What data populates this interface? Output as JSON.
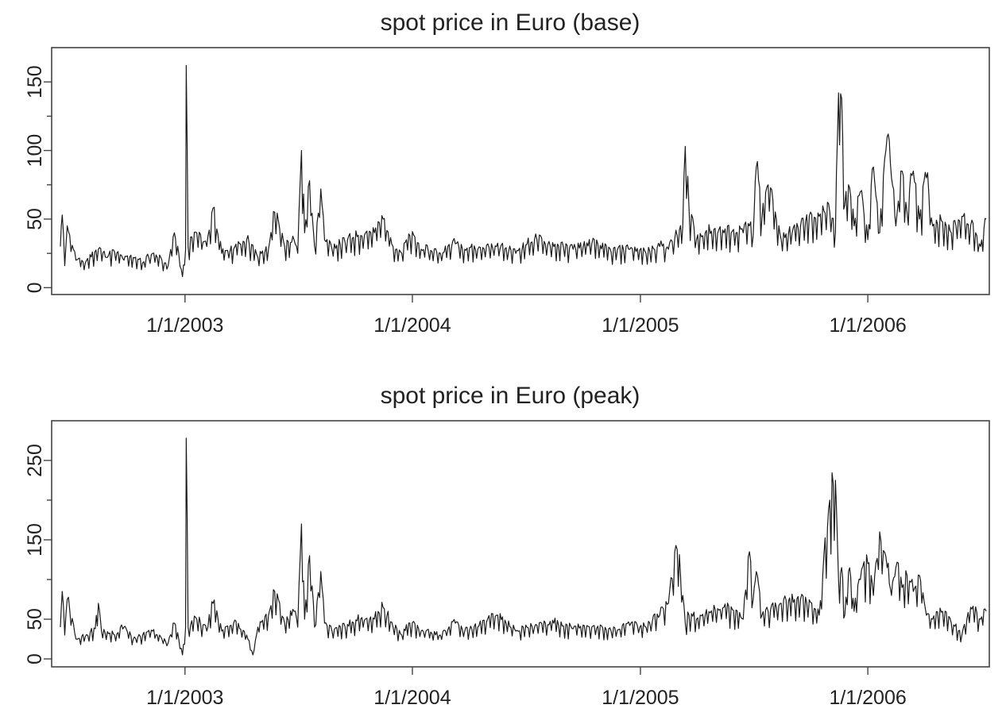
{
  "chart_data": [
    {
      "type": "line",
      "title": "spot price in Euro (base)",
      "xlabel": "",
      "ylabel": "",
      "xlim": [
        "2002-06-01",
        "2006-07-15"
      ],
      "ylim": [
        -5,
        175
      ],
      "x_ticks": [
        {
          "value": "2003-01-01",
          "label": "1/1/2003"
        },
        {
          "value": "2004-01-01",
          "label": "1/1/2004"
        },
        {
          "value": "2005-01-01",
          "label": "1/1/2005"
        },
        {
          "value": "2006-01-01",
          "label": "1/1/2006"
        }
      ],
      "y_ticks": [
        0,
        50,
        100,
        150
      ],
      "y_minor_ticks": [
        25,
        75,
        125
      ],
      "grid": false,
      "legend": "none",
      "series": [
        {
          "x": [
            "2002-06-15",
            "2002-06-18",
            "2002-06-22",
            "2002-06-26",
            "2002-07-10",
            "2002-07-25",
            "2002-08-15",
            "2002-08-28",
            "2002-09-10",
            "2002-09-25",
            "2002-10-10",
            "2002-10-25",
            "2002-11-10",
            "2002-11-25",
            "2002-12-05",
            "2002-12-15",
            "2002-12-22",
            "2002-12-28",
            "2003-01-02",
            "2003-01-03",
            "2003-01-06",
            "2003-01-20",
            "2003-02-05",
            "2003-02-15",
            "2003-03-01",
            "2003-03-20",
            "2003-04-10",
            "2003-04-28",
            "2003-05-15",
            "2003-05-25",
            "2003-06-10",
            "2003-06-25",
            "2003-07-01",
            "2003-07-07",
            "2003-07-12",
            "2003-07-20",
            "2003-07-28",
            "2003-08-07",
            "2003-08-13",
            "2003-08-25",
            "2003-09-15",
            "2003-10-10",
            "2003-11-01",
            "2003-11-15",
            "2003-12-01",
            "2003-12-15",
            "2003-12-28",
            "2004-01-15",
            "2004-02-15",
            "2004-03-10",
            "2004-03-25",
            "2004-04-15",
            "2004-05-15",
            "2004-06-15",
            "2004-07-15",
            "2004-08-15",
            "2004-09-15",
            "2004-10-15",
            "2004-11-15",
            "2004-12-15",
            "2005-01-10",
            "2005-02-01",
            "2005-02-15",
            "2005-03-01",
            "2005-03-10",
            "2005-03-14",
            "2005-03-20",
            "2005-04-01",
            "2005-04-15",
            "2005-05-15",
            "2005-06-15",
            "2005-06-25",
            "2005-07-01",
            "2005-07-06",
            "2005-07-15",
            "2005-07-25",
            "2005-08-15",
            "2005-09-15",
            "2005-10-15",
            "2005-11-01",
            "2005-11-10",
            "2005-11-15",
            "2005-11-20",
            "2005-11-25",
            "2005-12-01",
            "2005-12-10",
            "2005-12-20",
            "2006-01-01",
            "2006-01-10",
            "2006-01-20",
            "2006-02-01",
            "2006-02-08",
            "2006-02-15",
            "2006-02-25",
            "2006-03-05",
            "2006-03-15",
            "2006-03-25",
            "2006-04-05",
            "2006-04-15",
            "2006-05-01",
            "2006-05-15",
            "2006-06-01",
            "2006-06-15",
            "2006-07-01",
            "2006-07-10"
          ],
          "values": [
            30,
            53,
            16,
            45,
            20,
            18,
            28,
            22,
            26,
            20,
            22,
            18,
            25,
            20,
            16,
            40,
            25,
            8,
            28,
            162,
            30,
            40,
            30,
            58,
            25,
            28,
            35,
            22,
            28,
            55,
            30,
            35,
            25,
            100,
            40,
            78,
            30,
            72,
            35,
            28,
            33,
            38,
            40,
            50,
            30,
            25,
            38,
            28,
            25,
            32,
            28,
            28,
            30,
            25,
            35,
            30,
            28,
            32,
            26,
            28,
            25,
            30,
            28,
            38,
            45,
            103,
            58,
            35,
            40,
            40,
            40,
            45,
            38,
            88,
            50,
            75,
            35,
            45,
            52,
            55,
            40,
            142,
            138,
            60,
            75,
            45,
            70,
            35,
            88,
            40,
            110,
            80,
            45,
            85,
            55,
            85,
            50,
            80,
            45,
            48,
            40,
            52,
            45,
            30,
            50
          ]
        }
      ]
    },
    {
      "type": "line",
      "title": "spot price in Euro (peak)",
      "xlabel": "",
      "ylabel": "",
      "xlim": [
        "2002-06-01",
        "2006-07-15"
      ],
      "ylim": [
        -10,
        300
      ],
      "x_ticks": [
        {
          "value": "2003-01-01",
          "label": "1/1/2003"
        },
        {
          "value": "2004-01-01",
          "label": "1/1/2004"
        },
        {
          "value": "2005-01-01",
          "label": "1/1/2005"
        },
        {
          "value": "2006-01-01",
          "label": "1/1/2006"
        }
      ],
      "y_ticks": [
        0,
        50,
        150,
        250
      ],
      "y_minor_ticks": [
        100,
        200
      ],
      "grid": false,
      "legend": "none",
      "series": [
        {
          "x": [
            "2002-06-15",
            "2002-06-18",
            "2002-06-22",
            "2002-06-26",
            "2002-07-10",
            "2002-07-25",
            "2002-08-10",
            "2002-08-15",
            "2002-08-20",
            "2002-09-10",
            "2002-09-25",
            "2002-10-10",
            "2002-10-25",
            "2002-11-10",
            "2002-11-25",
            "2002-12-05",
            "2002-12-15",
            "2002-12-22",
            "2002-12-28",
            "2003-01-02",
            "2003-01-03",
            "2003-01-06",
            "2003-01-20",
            "2003-02-05",
            "2003-02-15",
            "2003-03-01",
            "2003-03-20",
            "2003-04-10",
            "2003-04-20",
            "2003-04-28",
            "2003-05-15",
            "2003-05-25",
            "2003-06-10",
            "2003-06-25",
            "2003-07-01",
            "2003-07-07",
            "2003-07-12",
            "2003-07-20",
            "2003-07-28",
            "2003-08-07",
            "2003-08-13",
            "2003-08-25",
            "2003-09-15",
            "2003-10-10",
            "2003-11-01",
            "2003-11-15",
            "2003-12-01",
            "2003-12-15",
            "2003-12-28",
            "2004-01-15",
            "2004-02-15",
            "2004-03-10",
            "2004-03-25",
            "2004-04-15",
            "2004-05-15",
            "2004-06-15",
            "2004-07-15",
            "2004-08-15",
            "2004-09-15",
            "2004-10-15",
            "2004-11-15",
            "2004-12-15",
            "2005-01-10",
            "2005-02-01",
            "2005-02-15",
            "2005-03-01",
            "2005-03-10",
            "2005-03-14",
            "2005-03-20",
            "2005-04-01",
            "2005-04-15",
            "2005-05-15",
            "2005-06-15",
            "2005-06-25",
            "2005-07-01",
            "2005-07-06",
            "2005-07-15",
            "2005-07-25",
            "2005-08-15",
            "2005-09-15",
            "2005-10-15",
            "2005-11-01",
            "2005-11-10",
            "2005-11-15",
            "2005-11-20",
            "2005-11-25",
            "2005-12-01",
            "2005-12-10",
            "2005-12-20",
            "2006-01-01",
            "2006-01-10",
            "2006-01-20",
            "2006-02-01",
            "2006-02-08",
            "2006-02-15",
            "2006-02-25",
            "2006-03-05",
            "2006-03-15",
            "2006-03-25",
            "2006-04-05",
            "2006-04-15",
            "2006-05-01",
            "2006-05-15",
            "2006-06-01",
            "2006-06-15",
            "2006-07-01",
            "2006-07-10"
          ],
          "values": [
            40,
            85,
            30,
            75,
            25,
            28,
            38,
            70,
            35,
            30,
            40,
            25,
            30,
            35,
            25,
            20,
            45,
            25,
            5,
            40,
            278,
            40,
            50,
            35,
            70,
            35,
            45,
            30,
            5,
            40,
            55,
            85,
            45,
            60,
            40,
            170,
            50,
            130,
            40,
            110,
            45,
            35,
            40,
            50,
            50,
            65,
            40,
            30,
            45,
            35,
            30,
            45,
            35,
            40,
            55,
            35,
            40,
            45,
            38,
            40,
            35,
            42,
            40,
            55,
            70,
            138,
            80,
            45,
            55,
            50,
            55,
            65,
            50,
            135,
            75,
            110,
            55,
            60,
            70,
            75,
            55,
            200,
            225,
            100,
            115,
            55,
            110,
            60,
            100,
            120,
            80,
            160,
            115,
            80,
            115,
            90,
            105,
            85,
            105,
            55,
            50,
            60,
            45,
            30,
            65,
            50,
            60
          ]
        }
      ]
    }
  ]
}
